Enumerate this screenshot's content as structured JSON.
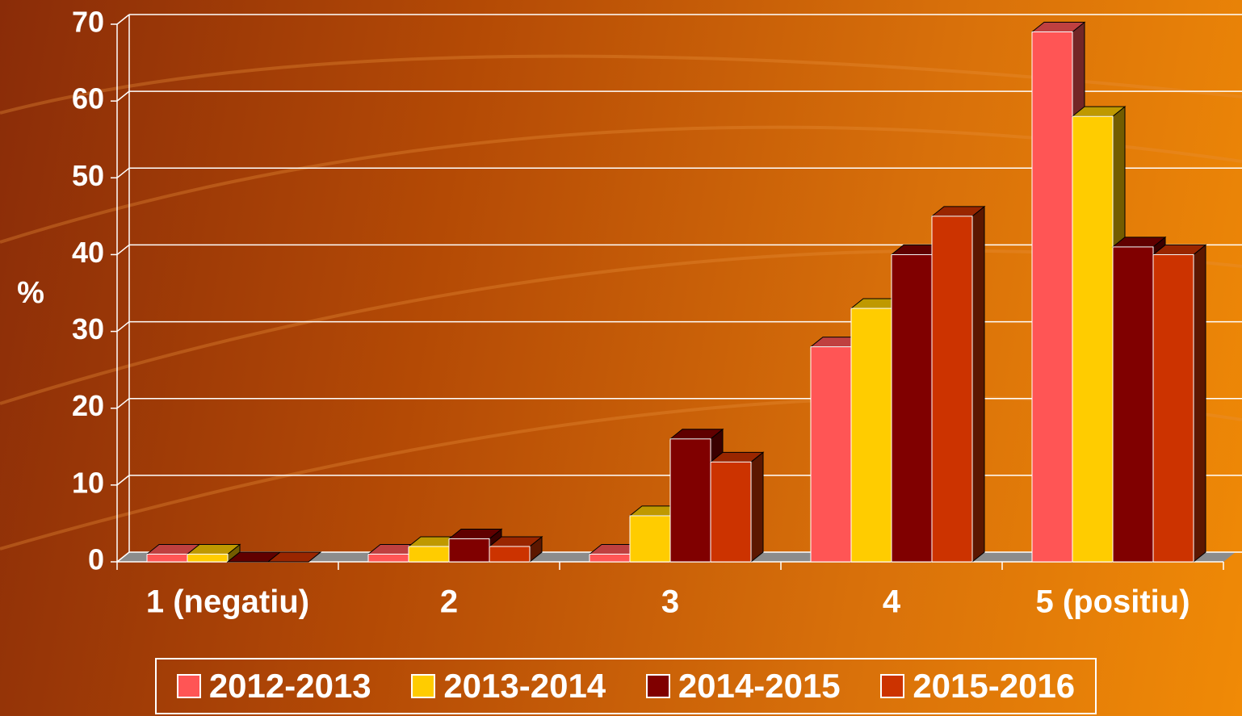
{
  "chart_data": {
    "type": "bar3d",
    "ylabel": "%",
    "categories": [
      "1 (negatiu)",
      "2",
      "3",
      "4",
      "5 (positiu)"
    ],
    "series": [
      {
        "name": "2012-2013",
        "color": "#ff5555",
        "values": [
          1,
          1,
          1,
          28,
          69
        ]
      },
      {
        "name": "2013-2014",
        "color": "#ffcc00",
        "values": [
          1,
          2,
          6,
          33,
          58
        ]
      },
      {
        "name": "2014-2015",
        "color": "#800000",
        "values": [
          0,
          3,
          16,
          40,
          41
        ]
      },
      {
        "name": "2015-2016",
        "color": "#cc3300",
        "values": [
          0,
          2,
          13,
          45,
          40
        ]
      }
    ],
    "ylim": [
      0,
      70
    ],
    "yticks": [
      0,
      10,
      20,
      30,
      40,
      50,
      60,
      70
    ],
    "grid": true,
    "legend": "bottom"
  }
}
